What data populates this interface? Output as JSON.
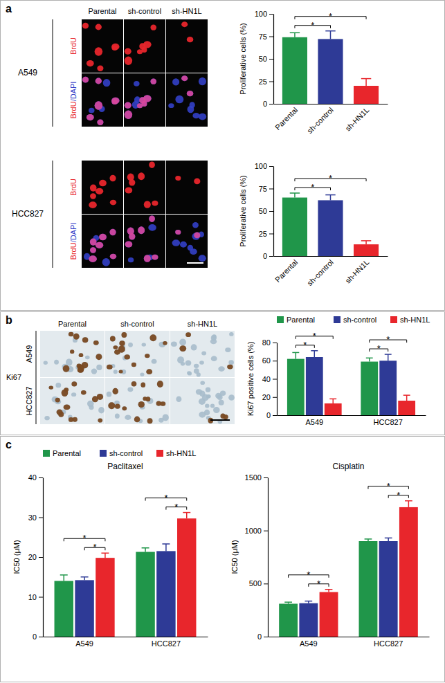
{
  "panel_labels": [
    "a",
    "b",
    "c"
  ],
  "images": [
    {
      "columns": [
        "Parental",
        "sh-control",
        "sh-HN1L"
      ],
      "groups": [
        {
          "label": "A549",
          "rows": [
            "BrdU",
            "BrdU/DAPI"
          ]
        },
        {
          "label": "HCC827",
          "rows": [
            "BrdU",
            "BrdU/DAPI"
          ]
        }
      ]
    },
    {
      "columns": [
        "Parental",
        "sh-control",
        "sh-HN1L"
      ],
      "stain": "Ki67",
      "rows": [
        "A549",
        "HCC827"
      ]
    }
  ],
  "chart_data": [
    {
      "type": "bar",
      "y_label": "Proliferative cells (%)",
      "categories": [
        "Parental",
        "sh-control",
        "sh-HN1L"
      ],
      "values": [
        74,
        72,
        20
      ],
      "errors": [
        5,
        9,
        8
      ],
      "colors": [
        "#20964a",
        "#2e3a96",
        "#e8262c"
      ],
      "ylim": [
        0,
        100
      ],
      "yticks": [
        0,
        25,
        50,
        75,
        100
      ],
      "comparisons": [
        {
          "pair": [
            "Parental",
            "sh-control"
          ],
          "label": "*"
        },
        {
          "pair": [
            "Parental",
            "sh-HN1L"
          ],
          "label": "*"
        }
      ]
    },
    {
      "type": "bar",
      "y_label": "Proliferative cells (%)",
      "categories": [
        "Parental",
        "sh-control",
        "sh-HN1L"
      ],
      "values": [
        65,
        62,
        13
      ],
      "errors": [
        5,
        6,
        4
      ],
      "colors": [
        "#20964a",
        "#2e3a96",
        "#e8262c"
      ],
      "ylim": [
        0,
        100
      ],
      "yticks": [
        0,
        25,
        50,
        75,
        100
      ],
      "comparisons": [
        {
          "pair": [
            "Parental",
            "sh-control"
          ],
          "label": "*"
        },
        {
          "pair": [
            "Parental",
            "sh-HN1L"
          ],
          "label": "*"
        }
      ]
    },
    {
      "type": "bar",
      "y_label": "Ki67 positive cells (%)",
      "categories": [
        "A549",
        "HCC827"
      ],
      "series": [
        {
          "name": "Parental",
          "color": "#20964a",
          "values": [
            62,
            59
          ],
          "errors": [
            7,
            4
          ]
        },
        {
          "name": "sh-control",
          "color": "#2e3a96",
          "values": [
            64,
            60
          ],
          "errors": [
            7,
            7
          ]
        },
        {
          "name": "sh-HN1L",
          "color": "#e8262c",
          "values": [
            13,
            16
          ],
          "errors": [
            5,
            6
          ]
        }
      ],
      "legend": "top",
      "ylim": [
        0,
        80
      ],
      "yticks": [
        0,
        20,
        40,
        60,
        80
      ],
      "comparisons": [
        {
          "category": "A549",
          "pair": [
            "Parental",
            "sh-control"
          ],
          "label": "*"
        },
        {
          "category": "A549",
          "pair": [
            "Parental",
            "sh-HN1L"
          ],
          "label": "*"
        },
        {
          "category": "HCC827",
          "pair": [
            "Parental",
            "sh-control"
          ],
          "label": "*"
        },
        {
          "category": "HCC827",
          "pair": [
            "Parental",
            "sh-HN1L"
          ],
          "label": "*"
        }
      ]
    },
    {
      "type": "bar",
      "title": "Paclitaxel",
      "y_label": "IC50 (μM)",
      "categories": [
        "A549",
        "HCC827"
      ],
      "series": [
        {
          "name": "Parental",
          "color": "#20964a",
          "values": [
            14,
            21.3
          ],
          "errors": [
            1.5,
            1
          ]
        },
        {
          "name": "sh-control",
          "color": "#2e3a96",
          "values": [
            14.2,
            21.5
          ],
          "errors": [
            0.8,
            1.8
          ]
        },
        {
          "name": "sh-HN1L",
          "color": "#e8262c",
          "values": [
            19.8,
            29.7
          ],
          "errors": [
            1.2,
            1.5
          ]
        }
      ],
      "legend": "top",
      "ylim": [
        0,
        40
      ],
      "yticks": [
        0,
        10,
        20,
        30,
        40
      ],
      "comparisons": [
        {
          "category": "A549",
          "pair": [
            "sh-control",
            "sh-HN1L"
          ],
          "label": "*"
        },
        {
          "category": "A549",
          "pair": [
            "Parental",
            "sh-HN1L"
          ],
          "label": "*"
        },
        {
          "category": "HCC827",
          "pair": [
            "sh-control",
            "sh-HN1L"
          ],
          "label": "*"
        },
        {
          "category": "HCC827",
          "pair": [
            "Parental",
            "sh-HN1L"
          ],
          "label": "*"
        }
      ]
    },
    {
      "type": "bar",
      "title": "Cisplatin",
      "y_label": "IC50 (μM)",
      "categories": [
        "A549",
        "HCC827"
      ],
      "series": [
        {
          "name": "Parental",
          "color": "#20964a",
          "values": [
            310,
            900
          ],
          "errors": [
            15,
            20
          ]
        },
        {
          "name": "sh-control",
          "color": "#2e3a96",
          "values": [
            315,
            900
          ],
          "errors": [
            20,
            30
          ]
        },
        {
          "name": "sh-HN1L",
          "color": "#e8262c",
          "values": [
            420,
            1220
          ],
          "errors": [
            25,
            60
          ]
        }
      ],
      "ylim": [
        0,
        1500
      ],
      "yticks": [
        0,
        500,
        1000,
        1500
      ],
      "comparisons": [
        {
          "category": "A549",
          "pair": [
            "sh-control",
            "sh-HN1L"
          ],
          "label": "*"
        },
        {
          "category": "A549",
          "pair": [
            "Parental",
            "sh-HN1L"
          ],
          "label": "*"
        },
        {
          "category": "HCC827",
          "pair": [
            "sh-control",
            "sh-HN1L"
          ],
          "label": "*"
        },
        {
          "category": "HCC827",
          "pair": [
            "Parental",
            "sh-HN1L"
          ],
          "label": "*"
        }
      ]
    }
  ]
}
